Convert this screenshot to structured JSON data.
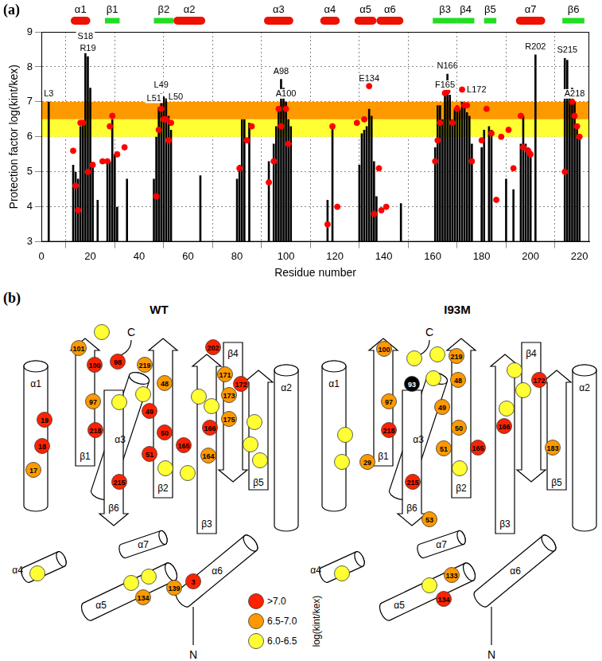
{
  "chart_data": {
    "type": "bar",
    "panel_label": "(a)",
    "xlabel": "Residue number",
    "ylabel": "Protection factor log(kint/kex)",
    "xlim": [
      0,
      224
    ],
    "xticks": [
      0,
      20,
      40,
      60,
      80,
      100,
      120,
      140,
      160,
      180,
      200,
      220
    ],
    "ylim": [
      3,
      9
    ],
    "yticks": [
      3,
      4,
      5,
      6,
      7,
      8,
      9
    ],
    "grid": true,
    "series": [
      {
        "type": "bar",
        "color": "#000000",
        "x": [
          3,
          13,
          14,
          15,
          16,
          17,
          18,
          19,
          20,
          21,
          23,
          27,
          28,
          29,
          30,
          31,
          35,
          46,
          47,
          48,
          49,
          50,
          51,
          52,
          53,
          65,
          80,
          81,
          82,
          83,
          85,
          93,
          95,
          96,
          97,
          98,
          99,
          100,
          101,
          102,
          117,
          119,
          130,
          131,
          132,
          133,
          134,
          135,
          136,
          137,
          147,
          161,
          162,
          163,
          164,
          165,
          166,
          167,
          168,
          169,
          170,
          171,
          172,
          173,
          174,
          175,
          176,
          180,
          181,
          183,
          184,
          190,
          193,
          196,
          197,
          198,
          199,
          200,
          202,
          214,
          215,
          216,
          217,
          218,
          219,
          220
        ],
        "values": [
          7.0,
          5.2,
          5.0,
          4.8,
          6.3,
          6.4,
          8.65,
          8.3,
          7.4,
          5.2,
          4.2,
          5.3,
          5.3,
          6.5,
          5.5,
          4.0,
          4.8,
          4.8,
          6.0,
          6.85,
          7.25,
          7.15,
          7.1,
          6.6,
          6.2,
          4.9,
          4.8,
          5.2,
          6.5,
          6.5,
          6.4,
          5.3,
          5.8,
          6.3,
          6.85,
          7.65,
          7.4,
          7.0,
          6.5,
          6.3,
          4.2,
          6.3,
          5.2,
          6.1,
          6.2,
          6.3,
          6.8,
          6.6,
          5.3,
          4.3,
          4.1,
          5.7,
          6.9,
          6.9,
          6.5,
          7.25,
          7.8,
          7.2,
          6.5,
          6.8,
          6.9,
          6.8,
          7.0,
          6.9,
          6.7,
          6.6,
          5.8,
          5.7,
          6.2,
          6.3,
          6.2,
          4.8,
          4.5,
          5.8,
          6.6,
          5.8,
          5.7,
          5.6,
          8.35,
          8.25,
          8.2,
          7.2,
          7.4,
          7.0,
          6.3,
          6.0
        ]
      },
      {
        "type": "scatter",
        "color": "#ff0000",
        "marker": "circle",
        "x": [
          13,
          14,
          15,
          16,
          17,
          19,
          21,
          25,
          27,
          28,
          29,
          31,
          34,
          47,
          48,
          49,
          50,
          51,
          52,
          53,
          81,
          84,
          86,
          93,
          95,
          97,
          98,
          100,
          101,
          117,
          119,
          121,
          129,
          132,
          134,
          136,
          138,
          139,
          141,
          161,
          162,
          163,
          165,
          166,
          168,
          170,
          172,
          173,
          174,
          176,
          180,
          182,
          184,
          186,
          188,
          191,
          193,
          196,
          197,
          199,
          200,
          214,
          216,
          217,
          218,
          219,
          220
        ],
        "values": [
          5.6,
          4.6,
          3.9,
          6.4,
          6.4,
          5.0,
          5.2,
          5.3,
          5.3,
          6.3,
          6.6,
          5.5,
          5.7,
          4.3,
          6.2,
          6.8,
          6.5,
          6.5,
          5.9,
          6.4,
          5.1,
          5.9,
          6.3,
          4.7,
          5.3,
          6.8,
          6.3,
          6.8,
          5.8,
          3.5,
          6.3,
          4.0,
          6.4,
          6.5,
          7.45,
          3.8,
          5.1,
          3.9,
          4.0,
          5.3,
          5.9,
          6.4,
          7.25,
          7.3,
          6.4,
          6.8,
          7.35,
          6.9,
          6.9,
          5.3,
          5.9,
          6.8,
          6.1,
          4.2,
          6.0,
          6.2,
          5.1,
          6.6,
          5.7,
          5.6,
          5.5,
          5.0,
          7.2,
          7.0,
          6.6,
          6.3,
          6.0
        ]
      }
    ],
    "bands": [
      {
        "range": [
          6.5,
          7.0
        ],
        "color": "#ff9900"
      },
      {
        "range": [
          6.0,
          6.5
        ],
        "color": "#ffff33"
      }
    ],
    "annotations": [
      {
        "text": "L3",
        "x": 3,
        "y": 7.0
      },
      {
        "text": "S18",
        "x": 18,
        "y": 8.65
      },
      {
        "text": "R19",
        "x": 19,
        "y": 8.3
      },
      {
        "text": "L49",
        "x": 49,
        "y": 7.25
      },
      {
        "text": "L50",
        "x": 50,
        "y": 7.15
      },
      {
        "text": "L51",
        "x": 51,
        "y": 7.1
      },
      {
        "text": "A98",
        "x": 98,
        "y": 7.65
      },
      {
        "text": "A100",
        "x": 100,
        "y": 7.0
      },
      {
        "text": "E134",
        "x": 134,
        "y": 7.45
      },
      {
        "text": "F165",
        "x": 165,
        "y": 7.25
      },
      {
        "text": "N166",
        "x": 166,
        "y": 7.8
      },
      {
        "text": "L172",
        "x": 172,
        "y": 7.35
      },
      {
        "text": "R202",
        "x": 202,
        "y": 8.35
      },
      {
        "text": "S215",
        "x": 215,
        "y": 8.25
      },
      {
        "text": "A218",
        "x": 218,
        "y": 7.0
      }
    ],
    "secondary_structure": [
      {
        "label": "α1",
        "kind": "helix",
        "range": [
          12,
          20
        ]
      },
      {
        "label": "β1",
        "kind": "strand",
        "range": [
          26,
          32
        ]
      },
      {
        "label": "β2",
        "kind": "strand",
        "range": [
          46,
          54
        ]
      },
      {
        "label": "α2",
        "kind": "helix",
        "range": [
          54,
          67
        ]
      },
      {
        "label": "α3",
        "kind": "helix",
        "range": [
          91,
          103
        ]
      },
      {
        "label": "α4",
        "kind": "helix",
        "range": [
          114,
          122
        ]
      },
      {
        "label": "α5",
        "kind": "helix",
        "range": [
          128,
          137
        ]
      },
      {
        "label": "α6",
        "kind": "helix",
        "range": [
          137,
          148
        ]
      },
      {
        "label": "β3",
        "kind": "strand",
        "range": [
          160,
          170
        ]
      },
      {
        "label": "β4",
        "kind": "strand",
        "range": [
          170,
          177
        ]
      },
      {
        "label": "β5",
        "kind": "strand",
        "range": [
          181,
          186
        ]
      },
      {
        "label": "α7",
        "kind": "helix",
        "range": [
          194,
          206
        ]
      },
      {
        "label": "β6",
        "kind": "strand",
        "range": [
          213,
          222
        ]
      }
    ],
    "helix_color": "#ee1100",
    "strand_color": "#22dd22",
    "legend": false
  },
  "topology": {
    "panel_label": "(b)",
    "legend": {
      "title": "log(kint/kex)",
      "levels": [
        {
          "label": ">7.0",
          "color": "#ff2200"
        },
        {
          "label": "6.5-7.0",
          "color": "#ff9900"
        },
        {
          "label": "6.0-6.5",
          "color": "#ffff33"
        }
      ]
    },
    "elements": [
      {
        "label": "α1",
        "kind": "helix"
      },
      {
        "label": "β1",
        "kind": "strand"
      },
      {
        "label": "β2",
        "kind": "strand"
      },
      {
        "label": "α2",
        "kind": "helix"
      },
      {
        "label": "α3",
        "kind": "helix"
      },
      {
        "label": "α4",
        "kind": "helix"
      },
      {
        "label": "α5",
        "kind": "helix"
      },
      {
        "label": "α6",
        "kind": "helix"
      },
      {
        "label": "β3",
        "kind": "strand"
      },
      {
        "label": "β4",
        "kind": "strand"
      },
      {
        "label": "β5",
        "kind": "strand"
      },
      {
        "label": "α7",
        "kind": "helix"
      },
      {
        "label": "β6",
        "kind": "strand"
      }
    ],
    "termini": [
      "C",
      "N"
    ],
    "panels": [
      {
        "title": "WT",
        "residues": [
          {
            "label": "101",
            "level": 1
          },
          {
            "label": null,
            "level": 2
          },
          {
            "label": "98",
            "level": 0
          },
          {
            "label": "100",
            "level": 0
          },
          {
            "label": "97",
            "level": 1
          },
          {
            "label": null,
            "level": 2
          },
          {
            "label": "218",
            "level": 0
          },
          {
            "label": "215",
            "level": 0
          },
          {
            "label": "19",
            "level": 0
          },
          {
            "label": "18",
            "level": 0
          },
          {
            "label": "17",
            "level": 1
          },
          {
            "label": "219",
            "level": 1
          },
          {
            "label": null,
            "level": 2
          },
          {
            "label": "48",
            "level": 1
          },
          {
            "label": "49",
            "level": 0
          },
          {
            "label": "50",
            "level": 0
          },
          {
            "label": "51",
            "level": 0
          },
          {
            "label": null,
            "level": 2
          },
          {
            "label": "202",
            "level": 0
          },
          {
            "label": "171",
            "level": 1
          },
          {
            "label": "172",
            "level": 0
          },
          {
            "label": "173",
            "level": 1
          },
          {
            "label": "175",
            "level": 1
          },
          {
            "label": "166",
            "level": 0
          },
          {
            "label": "165",
            "level": 0
          },
          {
            "label": "164",
            "level": 1
          },
          {
            "label": null,
            "level": 2
          },
          {
            "label": null,
            "level": 2
          },
          {
            "label": null,
            "level": 2
          },
          {
            "label": null,
            "level": 2
          },
          {
            "label": null,
            "level": 2
          },
          {
            "label": null,
            "level": 2
          },
          {
            "label": "3",
            "level": 0
          },
          {
            "label": "139",
            "level": 1
          },
          {
            "label": "134",
            "level": 1
          },
          {
            "label": null,
            "level": 2
          },
          {
            "label": null,
            "level": 2
          },
          {
            "label": null,
            "level": 2
          }
        ]
      },
      {
        "title": "I93M",
        "residues": [
          {
            "label": "100",
            "level": 1
          },
          {
            "label": null,
            "level": 2
          },
          {
            "label": null,
            "level": 2
          },
          {
            "label": null,
            "level": 2
          },
          {
            "label": "219",
            "level": 1
          },
          {
            "label": "97",
            "level": 1
          },
          {
            "label": "93",
            "color": "#000000"
          },
          {
            "label": "218",
            "level": 0
          },
          {
            "label": "29",
            "level": 1
          },
          {
            "label": "215",
            "level": 0
          },
          {
            "label": "53",
            "level": 1
          },
          {
            "label": null,
            "level": 2
          },
          {
            "label": null,
            "level": 2
          },
          {
            "label": "48",
            "level": 1
          },
          {
            "label": "49",
            "level": 1
          },
          {
            "label": "50",
            "level": 1
          },
          {
            "label": "51",
            "level": 1
          },
          {
            "label": null,
            "level": 2
          },
          {
            "label": "172",
            "level": 0
          },
          {
            "label": "166",
            "level": 0
          },
          {
            "label": "165",
            "level": 0
          },
          {
            "label": null,
            "level": 2
          },
          {
            "label": null,
            "level": 2
          },
          {
            "label": null,
            "level": 2
          },
          {
            "label": "183",
            "level": 1
          },
          {
            "label": null,
            "level": 2
          },
          {
            "label": null,
            "level": 2
          },
          {
            "label": "133",
            "level": 1
          },
          {
            "label": "134",
            "level": 0
          }
        ]
      }
    ]
  }
}
